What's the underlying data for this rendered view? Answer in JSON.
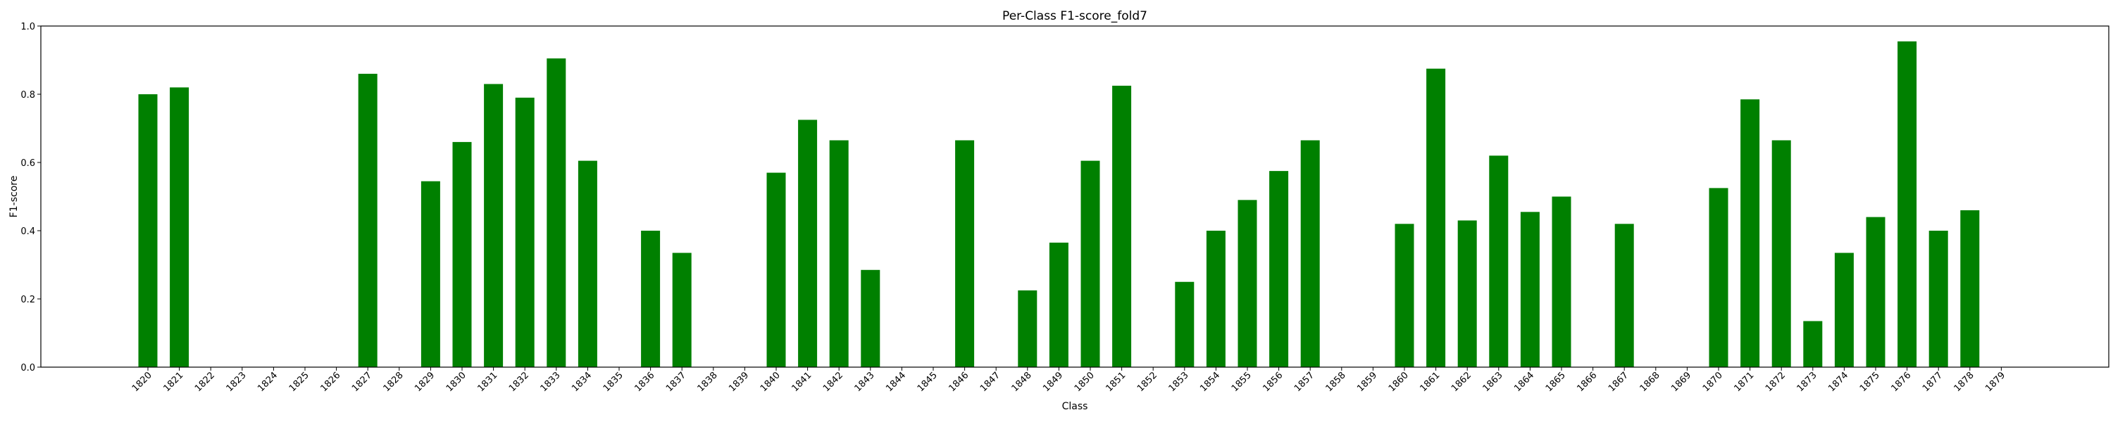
{
  "chart_data": {
    "type": "bar",
    "title": "Per-Class F1-score_fold7",
    "xlabel": "Class",
    "ylabel": "F1-score",
    "ylim": [
      0,
      1.0
    ],
    "yticks": [
      "0.0",
      "0.2",
      "0.4",
      "0.6",
      "0.8",
      "1.0"
    ],
    "grid": false,
    "bar_color": "#008000",
    "categories": [
      "1820",
      "1821",
      "1822",
      "1823",
      "1824",
      "1825",
      "1826",
      "1827",
      "1828",
      "1829",
      "1830",
      "1831",
      "1832",
      "1833",
      "1834",
      "1835",
      "1836",
      "1837",
      "1838",
      "1839",
      "1840",
      "1841",
      "1842",
      "1843",
      "1844",
      "1845",
      "1846",
      "1847",
      "1848",
      "1849",
      "1850",
      "1851",
      "1852",
      "1853",
      "1854",
      "1855",
      "1856",
      "1857",
      "1858",
      "1859",
      "1860",
      "1861",
      "1862",
      "1863",
      "1864",
      "1865",
      "1866",
      "1867",
      "1868",
      "1869",
      "1870",
      "1871",
      "1872",
      "1873",
      "1874",
      "1875",
      "1876",
      "1877",
      "1878",
      "1879"
    ],
    "values": [
      0.8,
      0.82,
      0,
      0,
      0,
      0,
      0,
      0.86,
      0,
      0.545,
      0.66,
      0.83,
      0.79,
      0.905,
      0.605,
      0,
      0.4,
      0.335,
      0,
      0,
      0.57,
      0.725,
      0.665,
      0.285,
      0,
      0,
      0.665,
      0,
      0.225,
      0.365,
      0.605,
      0.825,
      0,
      0.25,
      0.4,
      0.49,
      0.575,
      0.665,
      0,
      0,
      0.42,
      0.875,
      0.43,
      0.62,
      0.455,
      0.5,
      0,
      0.42,
      0,
      0,
      0.525,
      0.785,
      0.665,
      0.135,
      0.335,
      0.44,
      0.955,
      0.4,
      0.46,
      0
    ]
  }
}
